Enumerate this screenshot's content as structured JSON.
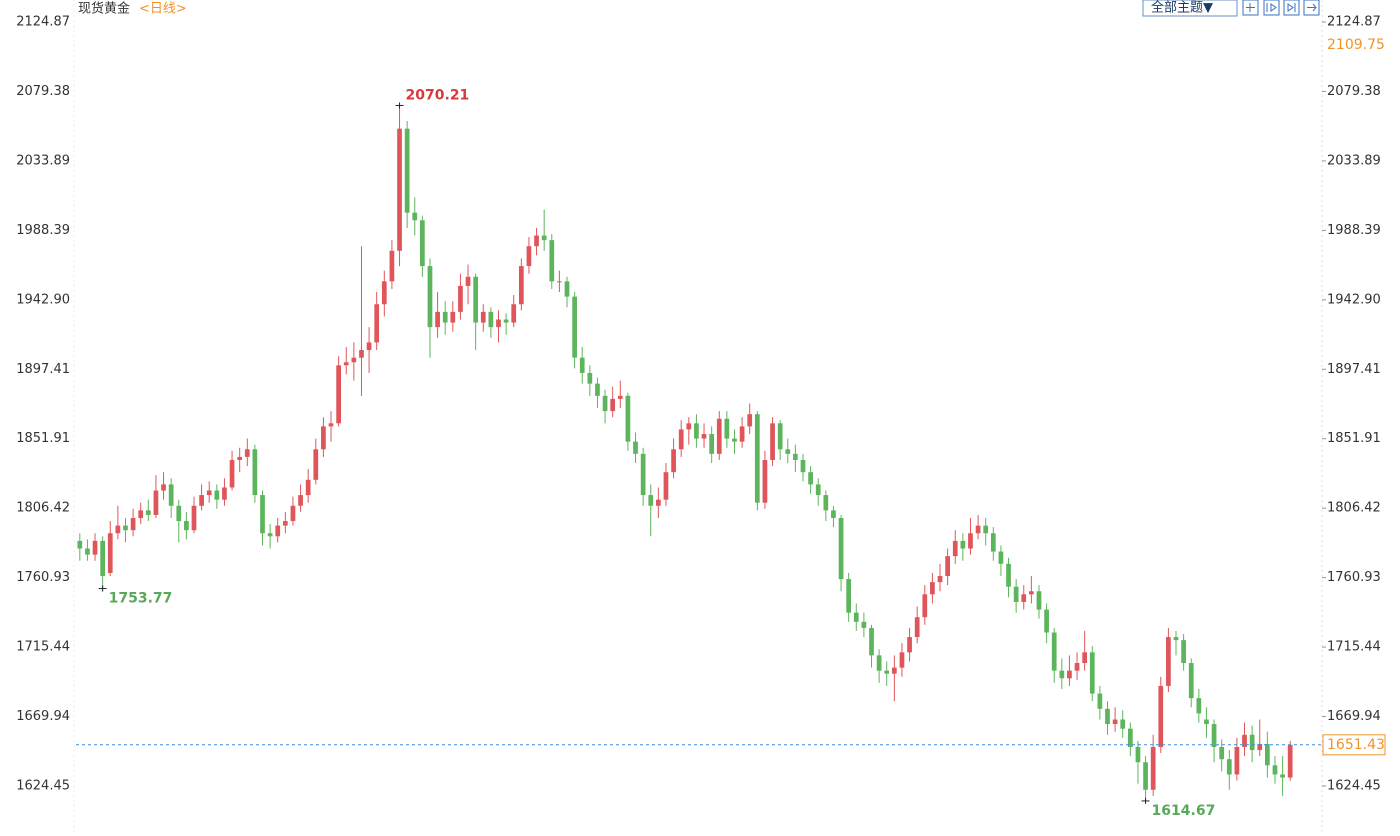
{
  "chart_data": {
    "type": "candlestick",
    "title": "现货黄金",
    "subtitle": "<日线>",
    "theme_button": "全部主题▼",
    "up_color": "#e0555a",
    "down_color": "#5cb55c",
    "ylim": [
      1594.32,
      2139.28
    ],
    "yticks": [
      1624.45,
      1669.94,
      1715.44,
      1760.93,
      1806.42,
      1851.91,
      1897.41,
      {
        "value": 1942.9,
        "label": "1942.90"
      },
      1988.39,
      2033.89,
      2079.38,
      2124.87
    ],
    "last_price": 1651.43,
    "reference_price": 2109.75,
    "candles": [
      [
        1785,
        1790,
        1772,
        1780
      ],
      [
        1780,
        1786,
        1772,
        1776
      ],
      [
        1776,
        1790,
        1772,
        1785
      ],
      [
        1785,
        1788,
        1753.77,
        1762
      ],
      [
        1764,
        1798,
        1762,
        1790
      ],
      [
        1790,
        1808,
        1786,
        1795
      ],
      [
        1795,
        1800,
        1784,
        1792
      ],
      [
        1792,
        1806,
        1788,
        1800
      ],
      [
        1800,
        1810,
        1796,
        1805
      ],
      [
        1805,
        1812,
        1798,
        1802
      ],
      [
        1802,
        1828,
        1800,
        1818
      ],
      [
        1818,
        1830,
        1812,
        1822
      ],
      [
        1822,
        1826,
        1800,
        1808
      ],
      [
        1808,
        1812,
        1784,
        1798
      ],
      [
        1798,
        1804,
        1786,
        1792
      ],
      [
        1792,
        1814,
        1790,
        1808
      ],
      [
        1808,
        1822,
        1805,
        1815
      ],
      [
        1815,
        1824,
        1810,
        1818
      ],
      [
        1818,
        1822,
        1806,
        1812
      ],
      [
        1812,
        1826,
        1808,
        1820
      ],
      [
        1820,
        1844,
        1818,
        1838
      ],
      [
        1838,
        1846,
        1830,
        1840
      ],
      [
        1840,
        1852,
        1834,
        1845
      ],
      [
        1845,
        1848,
        1810,
        1815
      ],
      [
        1815,
        1818,
        1782,
        1790
      ],
      [
        1790,
        1796,
        1780,
        1788
      ],
      [
        1788,
        1800,
        1784,
        1795
      ],
      [
        1795,
        1804,
        1790,
        1798
      ],
      [
        1798,
        1814,
        1795,
        1808
      ],
      [
        1808,
        1822,
        1804,
        1815
      ],
      [
        1815,
        1832,
        1810,
        1825
      ],
      [
        1825,
        1852,
        1822,
        1845
      ],
      [
        1845,
        1866,
        1840,
        1860
      ],
      [
        1860,
        1870,
        1850,
        1862
      ],
      [
        1862,
        1906,
        1860,
        1900
      ],
      [
        1900,
        1912,
        1894,
        1902
      ],
      [
        1902,
        1915,
        1890,
        1905
      ],
      [
        1905,
        1978,
        1880,
        1910
      ],
      [
        1910,
        1925,
        1895,
        1915
      ],
      [
        1915,
        1948,
        1910,
        1940
      ],
      [
        1940,
        1962,
        1932,
        1955
      ],
      [
        1955,
        1982,
        1950,
        1975
      ],
      [
        1975,
        2070.21,
        1965,
        2055
      ],
      [
        2055,
        2060,
        1990,
        2000
      ],
      [
        2000,
        2010,
        1985,
        1995
      ],
      [
        1995,
        1998,
        1958,
        1965
      ],
      [
        1965,
        1970,
        1905,
        1925
      ],
      [
        1925,
        1948,
        1918,
        1935
      ],
      [
        1935,
        1942,
        1920,
        1928
      ],
      [
        1928,
        1942,
        1922,
        1935
      ],
      [
        1935,
        1960,
        1930,
        1952
      ],
      [
        1952,
        1966,
        1940,
        1958
      ],
      [
        1958,
        1960,
        1910,
        1928
      ],
      [
        1928,
        1940,
        1922,
        1935
      ],
      [
        1935,
        1938,
        1918,
        1925
      ],
      [
        1925,
        1936,
        1915,
        1930
      ],
      [
        1930,
        1934,
        1920,
        1928
      ],
      [
        1928,
        1946,
        1925,
        1940
      ],
      [
        1940,
        1970,
        1936,
        1965
      ],
      [
        1965,
        1984,
        1960,
        1978
      ],
      [
        1978,
        1990,
        1972,
        1985
      ],
      [
        1985,
        2002,
        1975,
        1982
      ],
      [
        1982,
        1986,
        1950,
        1955
      ],
      [
        1955,
        1962,
        1948,
        1955
      ],
      [
        1955,
        1958,
        1938,
        1945
      ],
      [
        1945,
        1948,
        1898,
        1905
      ],
      [
        1905,
        1912,
        1888,
        1895
      ],
      [
        1895,
        1900,
        1880,
        1888
      ],
      [
        1888,
        1892,
        1872,
        1880
      ],
      [
        1880,
        1884,
        1862,
        1870
      ],
      [
        1870,
        1886,
        1866,
        1878
      ],
      [
        1878,
        1890,
        1872,
        1880
      ],
      [
        1880,
        1882,
        1844,
        1850
      ],
      [
        1850,
        1856,
        1836,
        1842
      ],
      [
        1842,
        1846,
        1808,
        1815
      ],
      [
        1815,
        1822,
        1788,
        1808
      ],
      [
        1808,
        1820,
        1800,
        1812
      ],
      [
        1812,
        1836,
        1808,
        1830
      ],
      [
        1830,
        1852,
        1826,
        1845
      ],
      [
        1845,
        1864,
        1840,
        1858
      ],
      [
        1858,
        1866,
        1848,
        1862
      ],
      [
        1862,
        1868,
        1846,
        1852
      ],
      [
        1852,
        1862,
        1846,
        1855
      ],
      [
        1855,
        1860,
        1836,
        1842
      ],
      [
        1842,
        1870,
        1838,
        1865
      ],
      [
        1865,
        1870,
        1846,
        1852
      ],
      [
        1852,
        1858,
        1842,
        1850
      ],
      [
        1850,
        1866,
        1846,
        1860
      ],
      [
        1860,
        1875,
        1855,
        1868
      ],
      [
        1868,
        1870,
        1805,
        1810
      ],
      [
        1810,
        1844,
        1806,
        1838
      ],
      [
        1838,
        1866,
        1834,
        1862
      ],
      [
        1862,
        1864,
        1838,
        1845
      ],
      [
        1845,
        1852,
        1836,
        1842
      ],
      [
        1842,
        1848,
        1830,
        1838
      ],
      [
        1838,
        1842,
        1824,
        1830
      ],
      [
        1830,
        1834,
        1816,
        1822
      ],
      [
        1822,
        1826,
        1808,
        1815
      ],
      [
        1815,
        1818,
        1798,
        1805
      ],
      [
        1805,
        1808,
        1794,
        1800
      ],
      [
        1800,
        1802,
        1752,
        1760
      ],
      [
        1760,
        1764,
        1732,
        1738
      ],
      [
        1738,
        1744,
        1726,
        1732
      ],
      [
        1732,
        1738,
        1722,
        1728
      ],
      [
        1728,
        1730,
        1702,
        1710
      ],
      [
        1710,
        1714,
        1692,
        1700
      ],
      [
        1700,
        1706,
        1690,
        1698
      ],
      [
        1698,
        1710,
        1680,
        1702
      ],
      [
        1702,
        1718,
        1696,
        1712
      ],
      [
        1712,
        1728,
        1706,
        1722
      ],
      [
        1722,
        1742,
        1718,
        1735
      ],
      [
        1735,
        1756,
        1730,
        1750
      ],
      [
        1750,
        1764,
        1744,
        1758
      ],
      [
        1758,
        1770,
        1752,
        1762
      ],
      [
        1762,
        1780,
        1756,
        1775
      ],
      [
        1775,
        1792,
        1770,
        1785
      ],
      [
        1785,
        1790,
        1772,
        1780
      ],
      [
        1780,
        1800,
        1776,
        1790
      ],
      [
        1790,
        1802,
        1786,
        1795
      ],
      [
        1795,
        1800,
        1782,
        1790
      ],
      [
        1790,
        1794,
        1772,
        1778
      ],
      [
        1778,
        1782,
        1762,
        1770
      ],
      [
        1770,
        1774,
        1748,
        1755
      ],
      [
        1755,
        1760,
        1738,
        1745
      ],
      [
        1745,
        1756,
        1740,
        1750
      ],
      [
        1750,
        1762,
        1744,
        1752
      ],
      [
        1752,
        1756,
        1734,
        1740
      ],
      [
        1740,
        1744,
        1718,
        1725
      ],
      [
        1725,
        1728,
        1692,
        1700
      ],
      [
        1700,
        1708,
        1688,
        1695
      ],
      [
        1695,
        1710,
        1690,
        1700
      ],
      [
        1700,
        1712,
        1694,
        1705
      ],
      [
        1705,
        1726,
        1700,
        1712
      ],
      [
        1712,
        1716,
        1680,
        1685
      ],
      [
        1685,
        1690,
        1668,
        1675
      ],
      [
        1675,
        1680,
        1658,
        1665
      ],
      [
        1665,
        1676,
        1660,
        1668
      ],
      [
        1668,
        1674,
        1656,
        1662
      ],
      [
        1662,
        1666,
        1644,
        1650
      ],
      [
        1650,
        1654,
        1626,
        1640
      ],
      [
        1640,
        1644,
        1614.67,
        1622
      ],
      [
        1622,
        1658,
        1618,
        1650
      ],
      [
        1650,
        1696,
        1646,
        1690
      ],
      [
        1690,
        1728,
        1686,
        1722
      ],
      [
        1722,
        1726,
        1710,
        1720
      ],
      [
        1720,
        1724,
        1700,
        1705
      ],
      [
        1705,
        1708,
        1676,
        1682
      ],
      [
        1682,
        1688,
        1666,
        1672
      ],
      [
        1668,
        1676,
        1656,
        1665
      ],
      [
        1665,
        1668,
        1640,
        1650
      ],
      [
        1650,
        1655,
        1634,
        1642
      ],
      [
        1642,
        1648,
        1622,
        1632
      ],
      [
        1632,
        1656,
        1628,
        1650
      ],
      [
        1650,
        1666,
        1644,
        1658
      ],
      [
        1658,
        1664,
        1640,
        1648
      ],
      [
        1648,
        1668,
        1644,
        1652
      ],
      [
        1652,
        1660,
        1630,
        1638
      ],
      [
        1638,
        1644,
        1626,
        1632
      ],
      [
        1632,
        1644,
        1618,
        1630
      ],
      [
        1630,
        1654,
        1628,
        1651.43
      ]
    ]
  }
}
